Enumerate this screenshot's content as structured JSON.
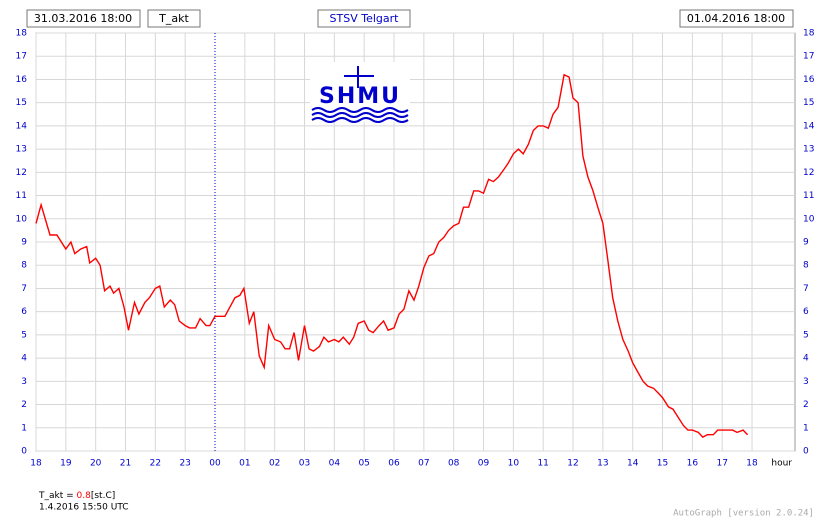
{
  "chart_data": {
    "type": "line",
    "start_label": "31.03.2016 18:00",
    "variable": "T_akt",
    "station": "STSV Telgart",
    "end_label": "01.04.2016 18:00",
    "logo": "SHMU",
    "x_label": "hour",
    "xlim": [
      0,
      25.44
    ],
    "xticks": [
      {
        "value": 0,
        "label": "18"
      },
      {
        "value": 1,
        "label": "19"
      },
      {
        "value": 2,
        "label": "20"
      },
      {
        "value": 3,
        "label": "21"
      },
      {
        "value": 4,
        "label": "22"
      },
      {
        "value": 5,
        "label": "23"
      },
      {
        "value": 6,
        "label": "00"
      },
      {
        "value": 7,
        "label": "01"
      },
      {
        "value": 8,
        "label": "02"
      },
      {
        "value": 9,
        "label": "03"
      },
      {
        "value": 10,
        "label": "04"
      },
      {
        "value": 11,
        "label": "05"
      },
      {
        "value": 12,
        "label": "06"
      },
      {
        "value": 13,
        "label": "07"
      },
      {
        "value": 14,
        "label": "08"
      },
      {
        "value": 15,
        "label": "09"
      },
      {
        "value": 16,
        "label": "10"
      },
      {
        "value": 17,
        "label": "11"
      },
      {
        "value": 18,
        "label": "12"
      },
      {
        "value": 19,
        "label": "13"
      },
      {
        "value": 20,
        "label": "14"
      },
      {
        "value": 21,
        "label": "15"
      },
      {
        "value": 22,
        "label": "16"
      },
      {
        "value": 23,
        "label": "17"
      },
      {
        "value": 24,
        "label": "18"
      }
    ],
    "ylim": [
      0,
      18
    ],
    "yticks": [
      0,
      1,
      2,
      3,
      4,
      5,
      6,
      7,
      8,
      9,
      10,
      11,
      12,
      13,
      14,
      15,
      16,
      17,
      18
    ],
    "grid": true,
    "series": [
      {
        "name": "T_akt",
        "color": "#ff0000",
        "x": [
          0,
          0.17,
          0.47,
          0.7,
          1.0,
          1.17,
          1.3,
          1.5,
          1.7,
          1.8,
          2.0,
          2.15,
          2.3,
          2.48,
          2.6,
          2.78,
          2.95,
          3.1,
          3.3,
          3.45,
          3.65,
          3.8,
          4.0,
          4.15,
          4.3,
          4.5,
          4.65,
          4.8,
          5.0,
          5.15,
          5.35,
          5.5,
          5.7,
          5.83,
          6.0,
          6.33,
          6.67,
          6.83,
          6.97,
          7.15,
          7.3,
          7.48,
          7.65,
          7.8,
          8.0,
          8.2,
          8.35,
          8.5,
          8.65,
          8.8,
          9.0,
          9.15,
          9.3,
          9.5,
          9.65,
          9.8,
          10.0,
          10.15,
          10.3,
          10.5,
          10.65,
          10.8,
          11.0,
          11.15,
          11.3,
          11.5,
          11.65,
          11.8,
          12.0,
          12.17,
          12.33,
          12.5,
          12.67,
          12.83,
          13.0,
          13.17,
          13.33,
          13.5,
          13.67,
          13.83,
          14.0,
          14.17,
          14.33,
          14.5,
          14.67,
          14.83,
          15.0,
          15.17,
          15.33,
          15.5,
          15.67,
          15.83,
          16.0,
          16.17,
          16.33,
          16.5,
          16.67,
          16.83,
          17.0,
          17.17,
          17.33,
          17.5,
          17.7,
          17.87,
          18.0,
          18.17,
          18.33,
          18.5,
          18.67,
          18.83,
          19.0,
          19.17,
          19.33,
          19.5,
          19.67,
          19.85,
          20.0,
          20.17,
          20.35,
          20.5,
          20.7,
          20.85,
          21.0,
          21.2,
          21.35,
          21.5,
          21.7,
          21.85,
          22.0,
          22.2,
          22.35,
          22.5,
          22.7,
          22.85,
          23.0,
          23.2,
          23.35,
          23.5,
          23.7,
          23.85
        ],
        "values": [
          9.8,
          10.6,
          9.3,
          9.3,
          8.7,
          9.0,
          8.5,
          8.7,
          8.8,
          8.1,
          8.3,
          8.0,
          6.9,
          7.1,
          6.8,
          7.0,
          6.2,
          5.2,
          6.4,
          5.9,
          6.4,
          6.6,
          7.0,
          7.1,
          6.2,
          6.5,
          6.3,
          5.6,
          5.4,
          5.3,
          5.3,
          5.7,
          5.4,
          5.4,
          5.8,
          5.8,
          6.6,
          6.7,
          7.0,
          5.5,
          6.0,
          4.1,
          3.6,
          5.4,
          4.8,
          4.7,
          4.4,
          4.4,
          5.1,
          3.9,
          5.4,
          4.4,
          4.3,
          4.5,
          4.9,
          4.7,
          4.8,
          4.7,
          4.9,
          4.6,
          4.9,
          5.5,
          5.6,
          5.2,
          5.1,
          5.4,
          5.6,
          5.2,
          5.3,
          5.9,
          6.1,
          6.9,
          6.5,
          7.1,
          7.9,
          8.4,
          8.5,
          9.0,
          9.2,
          9.5,
          9.7,
          9.8,
          10.5,
          10.5,
          11.2,
          11.2,
          11.1,
          11.7,
          11.6,
          11.8,
          12.1,
          12.4,
          12.8,
          13.0,
          12.8,
          13.2,
          13.8,
          14.0,
          14.0,
          13.9,
          14.5,
          14.8,
          16.2,
          16.1,
          15.2,
          15.0,
          12.7,
          11.8,
          11.2,
          10.5,
          9.8,
          8.2,
          6.6,
          5.6,
          4.8,
          4.3,
          3.8,
          3.4,
          3.0,
          2.8,
          2.7,
          2.5,
          2.3,
          1.9,
          1.8,
          1.5,
          1.1,
          0.9,
          0.9,
          0.8,
          0.6,
          0.7,
          0.7,
          0.9,
          0.9,
          0.9,
          0.9,
          0.8,
          0.9,
          0.7
        ]
      }
    ],
    "current": {
      "label": "T_akt =",
      "value": 0.8,
      "unit": "[st.C]",
      "time": "1.4.2016 15:50 UTC"
    },
    "footer": "AutoGraph [version 2.0.24]"
  }
}
